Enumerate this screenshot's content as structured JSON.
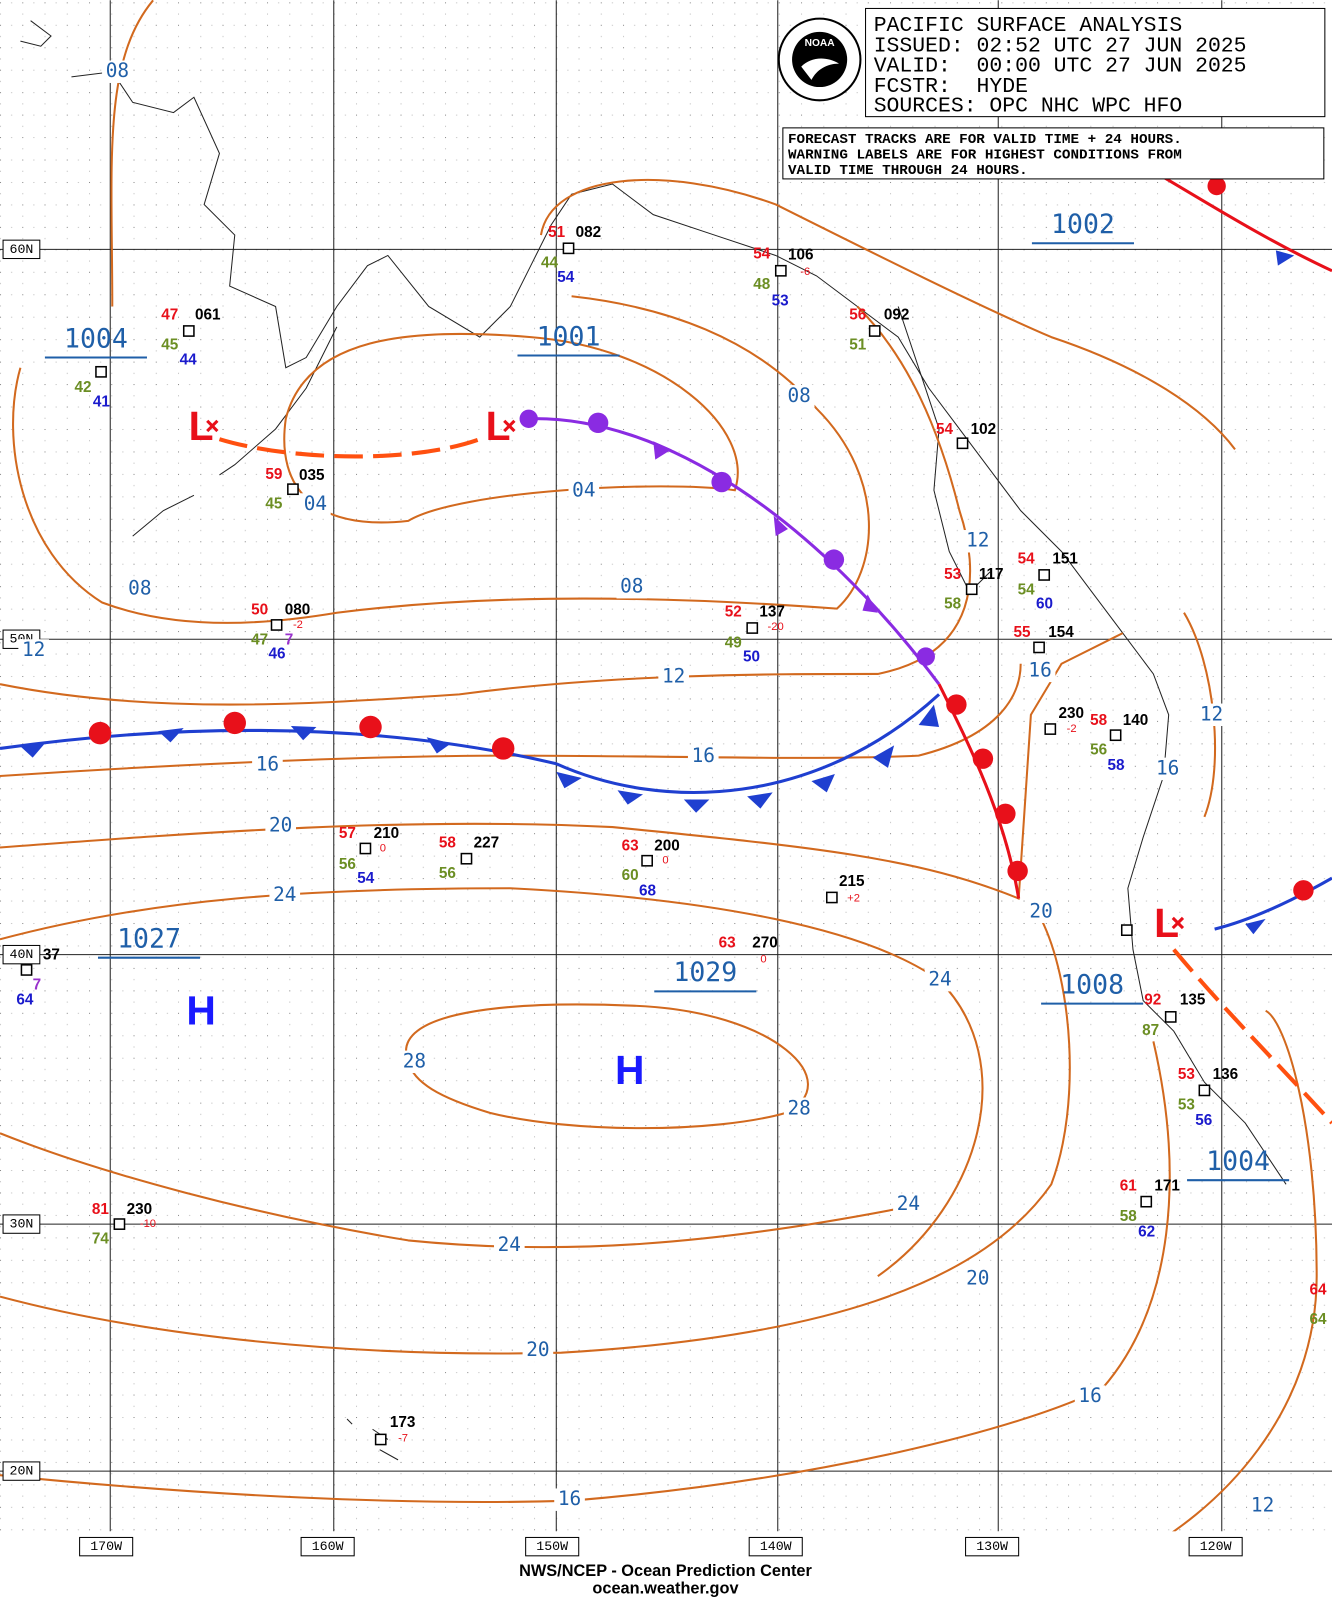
{
  "header": {
    "title": "PACIFIC SURFACE ANALYSIS",
    "issued": "ISSUED: 02:52 UTC 27 JUN 2025",
    "valid": "VALID:  00:00 UTC 27 JUN 2025",
    "forecaster": "FCSTR:  HYDE",
    "sources": "SOURCES: OPC NHC WPC HFO",
    "logo": "NOAA"
  },
  "notes": [
    "FORECAST TRACKS ARE FOR VALID TIME + 24 HOURS.",
    "WARNING LABELS ARE FOR HIGHEST CONDITIONS FROM",
    "VALID TIME THROUGH 24 HOURS."
  ],
  "footer": [
    "NWS/NCEP - Ocean Prediction Center",
    "ocean.weather.gov"
  ],
  "lat_labels": [
    "60N",
    "50N",
    "40N",
    "30N",
    "20N"
  ],
  "lon_labels": [
    "170W",
    "160W",
    "150W",
    "140W",
    "130W",
    "120W"
  ],
  "pressure_labels": [
    "1004",
    "1001",
    "1002",
    "1027",
    "1029",
    "1008",
    "1004"
  ],
  "center_symbols": [
    "H",
    "H",
    "L",
    "L",
    "L"
  ],
  "isobar_labels": [
    "08",
    "08",
    "04",
    "04",
    "08",
    "08",
    "12",
    "12",
    "12",
    "16",
    "16",
    "16",
    "16",
    "12",
    "20",
    "24",
    "20",
    "24",
    "28",
    "28",
    "24",
    "24",
    "20",
    "20",
    "16",
    "16",
    "12"
  ],
  "station_plots": [
    "51",
    "082",
    "44",
    "54",
    "54",
    "106",
    "-6",
    "48",
    "53",
    "56",
    "092",
    "51",
    "47",
    "061",
    "45",
    "44",
    "42",
    "41",
    "59",
    "035",
    "45",
    "54",
    "102",
    "53",
    "117",
    "58",
    "54",
    "151",
    "54",
    "60",
    "50",
    "080",
    "-2",
    "47",
    "7",
    "46",
    "52",
    "137",
    "-20",
    "49",
    "50",
    "55",
    "154",
    "230",
    "-2",
    "58",
    "140",
    "56",
    "58",
    "57",
    "210",
    "0",
    "56",
    "54",
    "58",
    "227",
    "56",
    "63",
    "200",
    "0",
    "60",
    "68",
    "215",
    "+2",
    "63",
    "270",
    "0",
    "37",
    "7",
    "64",
    "92",
    "135",
    "87",
    "53",
    "136",
    "53",
    "56",
    "61",
    "171",
    "58",
    "62",
    "81",
    "230",
    "-10",
    "74",
    "173",
    "-7",
    "64",
    "64"
  ]
}
